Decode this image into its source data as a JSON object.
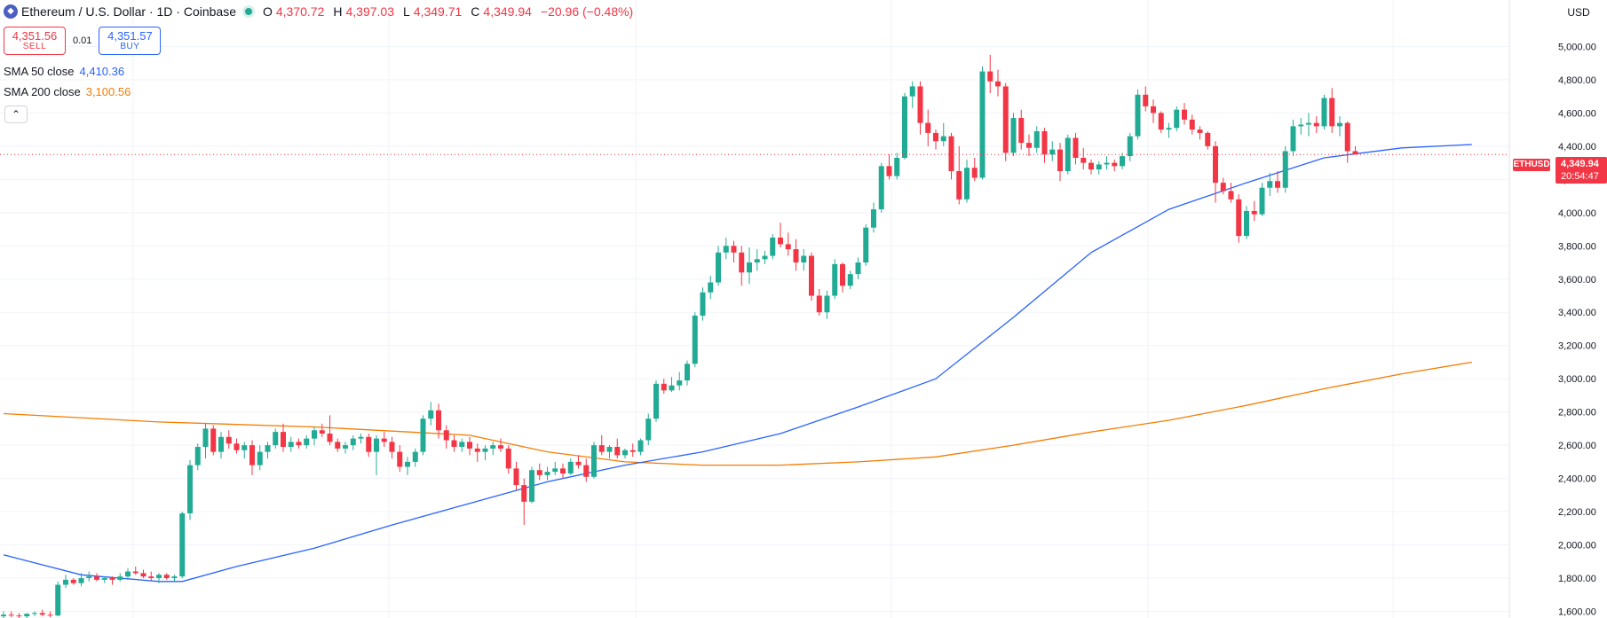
{
  "header": {
    "symbol_icon": "ethereum-icon",
    "title": "Ethereum / U.S. Dollar · 1D · Coinbase",
    "open_label": "O",
    "open_value": "4,370.72",
    "high_label": "H",
    "high_value": "4,397.03",
    "low_label": "L",
    "low_value": "4,349.71",
    "close_label": "C",
    "close_value": "4,349.94",
    "change": "−20.96 (−0.48%)"
  },
  "trade": {
    "sell_price": "4,351.56",
    "sell_label": "SELL",
    "spread": "0.01",
    "buy_price": "4,351.57",
    "buy_label": "BUY"
  },
  "indicators": {
    "sma50_label": "SMA 50 close",
    "sma50_value": "4,410.36",
    "sma200_label": "SMA 200 close",
    "sma200_value": "3,100.56",
    "collapse_icon": "chevron-up-icon"
  },
  "currency": "USD",
  "last_price_tag": {
    "symbol": "ETHUSD",
    "price": "4,349.94",
    "countdown": "20:54:47"
  },
  "colors": {
    "up": "#22ab94",
    "down": "#f23645",
    "sma50": "#2962ff",
    "sma200": "#f57c00",
    "grid": "#f0f3fa"
  },
  "chart_data": {
    "type": "candlestick",
    "ylim": [
      1560,
      5280
    ],
    "y_ticks": [
      1600,
      1800,
      2000,
      2200,
      2400,
      2600,
      2800,
      3000,
      3200,
      3400,
      3600,
      3800,
      4000,
      4200,
      4400,
      4600,
      4800,
      5000
    ],
    "y_tick_labels": [
      "1,600.00",
      "1,800.00",
      "2,000.00",
      "2,200.00",
      "2,400.00",
      "2,600.00",
      "2,800.00",
      "3,000.00",
      "3,200.00",
      "3,400.00",
      "3,600.00",
      "3,800.00",
      "4,000.00",
      "4,200.00",
      "4,400.00",
      "4,600.00",
      "4,800.00",
      "5,000.00"
    ],
    "grid": true,
    "last_close": 4349.94,
    "candles": [
      [
        1570,
        1600,
        1560,
        1580
      ],
      [
        1580,
        1600,
        1565,
        1575
      ],
      [
        1575,
        1590,
        1560,
        1570
      ],
      [
        1570,
        1590,
        1560,
        1585
      ],
      [
        1585,
        1600,
        1570,
        1590
      ],
      [
        1590,
        1610,
        1570,
        1580
      ],
      [
        1580,
        1600,
        1565,
        1575
      ],
      [
        1575,
        1780,
        1570,
        1760
      ],
      [
        1760,
        1820,
        1740,
        1790
      ],
      [
        1790,
        1800,
        1760,
        1770
      ],
      [
        1770,
        1830,
        1750,
        1800
      ],
      [
        1800,
        1840,
        1780,
        1810
      ],
      [
        1810,
        1830,
        1780,
        1790
      ],
      [
        1790,
        1810,
        1770,
        1800
      ],
      [
        1800,
        1810,
        1760,
        1790
      ],
      [
        1790,
        1830,
        1780,
        1810
      ],
      [
        1810,
        1860,
        1790,
        1840
      ],
      [
        1840,
        1870,
        1820,
        1830
      ],
      [
        1830,
        1850,
        1800,
        1810
      ],
      [
        1810,
        1840,
        1780,
        1800
      ],
      [
        1800,
        1830,
        1770,
        1820
      ],
      [
        1820,
        1830,
        1790,
        1800
      ],
      [
        1800,
        1820,
        1780,
        1810
      ],
      [
        1810,
        2200,
        1800,
        2190
      ],
      [
        2190,
        2510,
        2150,
        2480
      ],
      [
        2480,
        2610,
        2450,
        2590
      ],
      [
        2590,
        2730,
        2520,
        2700
      ],
      [
        2700,
        2720,
        2540,
        2560
      ],
      [
        2560,
        2680,
        2520,
        2650
      ],
      [
        2650,
        2690,
        2580,
        2610
      ],
      [
        2610,
        2640,
        2550,
        2570
      ],
      [
        2570,
        2620,
        2520,
        2600
      ],
      [
        2600,
        2630,
        2420,
        2480
      ],
      [
        2480,
        2600,
        2450,
        2560
      ],
      [
        2560,
        2620,
        2520,
        2600
      ],
      [
        2600,
        2700,
        2580,
        2680
      ],
      [
        2680,
        2730,
        2560,
        2590
      ],
      [
        2590,
        2650,
        2560,
        2620
      ],
      [
        2620,
        2640,
        2580,
        2600
      ],
      [
        2600,
        2660,
        2580,
        2640
      ],
      [
        2640,
        2710,
        2600,
        2690
      ],
      [
        2690,
        2730,
        2650,
        2670
      ],
      [
        2670,
        2780,
        2600,
        2620
      ],
      [
        2620,
        2640,
        2560,
        2580
      ],
      [
        2580,
        2620,
        2550,
        2600
      ],
      [
        2600,
        2660,
        2570,
        2640
      ],
      [
        2640,
        2670,
        2610,
        2650
      ],
      [
        2650,
        2670,
        2530,
        2560
      ],
      [
        2560,
        2660,
        2420,
        2640
      ],
      [
        2640,
        2680,
        2590,
        2620
      ],
      [
        2620,
        2650,
        2520,
        2560
      ],
      [
        2560,
        2600,
        2440,
        2470
      ],
      [
        2470,
        2530,
        2420,
        2500
      ],
      [
        2500,
        2580,
        2470,
        2560
      ],
      [
        2560,
        2780,
        2540,
        2760
      ],
      [
        2760,
        2860,
        2720,
        2810
      ],
      [
        2810,
        2850,
        2640,
        2690
      ],
      [
        2690,
        2720,
        2580,
        2630
      ],
      [
        2630,
        2660,
        2560,
        2590
      ],
      [
        2590,
        2640,
        2560,
        2620
      ],
      [
        2620,
        2650,
        2540,
        2580
      ],
      [
        2580,
        2610,
        2500,
        2560
      ],
      [
        2560,
        2600,
        2510,
        2580
      ],
      [
        2580,
        2620,
        2540,
        2600
      ],
      [
        2600,
        2640,
        2560,
        2580
      ],
      [
        2580,
        2600,
        2430,
        2460
      ],
      [
        2460,
        2500,
        2330,
        2360
      ],
      [
        2360,
        2400,
        2120,
        2260
      ],
      [
        2260,
        2470,
        2250,
        2450
      ],
      [
        2450,
        2490,
        2390,
        2420
      ],
      [
        2420,
        2470,
        2390,
        2440
      ],
      [
        2440,
        2500,
        2420,
        2460
      ],
      [
        2460,
        2490,
        2400,
        2430
      ],
      [
        2430,
        2520,
        2420,
        2500
      ],
      [
        2500,
        2540,
        2460,
        2480
      ],
      [
        2480,
        2520,
        2380,
        2410
      ],
      [
        2410,
        2620,
        2400,
        2600
      ],
      [
        2600,
        2660,
        2540,
        2560
      ],
      [
        2560,
        2600,
        2520,
        2590
      ],
      [
        2590,
        2640,
        2520,
        2540
      ],
      [
        2540,
        2580,
        2520,
        2570
      ],
      [
        2570,
        2610,
        2530,
        2560
      ],
      [
        2560,
        2640,
        2540,
        2630
      ],
      [
        2630,
        2790,
        2600,
        2760
      ],
      [
        2760,
        2990,
        2740,
        2970
      ],
      [
        2970,
        3000,
        2910,
        2930
      ],
      [
        2930,
        3010,
        2920,
        2960
      ],
      [
        2960,
        3040,
        2930,
        2990
      ],
      [
        2990,
        3110,
        2960,
        3090
      ],
      [
        3090,
        3400,
        3070,
        3380
      ],
      [
        3380,
        3550,
        3350,
        3520
      ],
      [
        3520,
        3620,
        3480,
        3580
      ],
      [
        3580,
        3800,
        3560,
        3760
      ],
      [
        3760,
        3850,
        3720,
        3800
      ],
      [
        3800,
        3830,
        3700,
        3760
      ],
      [
        3760,
        3800,
        3560,
        3640
      ],
      [
        3640,
        3790,
        3570,
        3700
      ],
      [
        3700,
        3780,
        3650,
        3720
      ],
      [
        3720,
        3770,
        3690,
        3740
      ],
      [
        3740,
        3870,
        3720,
        3850
      ],
      [
        3850,
        3940,
        3790,
        3810
      ],
      [
        3810,
        3880,
        3740,
        3780
      ],
      [
        3780,
        3840,
        3650,
        3700
      ],
      [
        3700,
        3780,
        3650,
        3740
      ],
      [
        3740,
        3760,
        3470,
        3500
      ],
      [
        3500,
        3540,
        3380,
        3400
      ],
      [
        3400,
        3530,
        3360,
        3500
      ],
      [
        3500,
        3720,
        3480,
        3690
      ],
      [
        3690,
        3700,
        3520,
        3560
      ],
      [
        3560,
        3650,
        3540,
        3630
      ],
      [
        3630,
        3730,
        3600,
        3700
      ],
      [
        3700,
        3930,
        3680,
        3910
      ],
      [
        3910,
        4060,
        3880,
        4020
      ],
      [
        4020,
        4300,
        4000,
        4280
      ],
      [
        4280,
        4350,
        4200,
        4220
      ],
      [
        4220,
        4360,
        4200,
        4330
      ],
      [
        4330,
        4720,
        4320,
        4700
      ],
      [
        4700,
        4790,
        4630,
        4760
      ],
      [
        4760,
        4790,
        4470,
        4540
      ],
      [
        4540,
        4620,
        4400,
        4480
      ],
      [
        4480,
        4500,
        4380,
        4430
      ],
      [
        4430,
        4540,
        4400,
        4460
      ],
      [
        4460,
        4480,
        4200,
        4250
      ],
      [
        4250,
        4400,
        4050,
        4080
      ],
      [
        4080,
        4320,
        4060,
        4270
      ],
      [
        4270,
        4330,
        4190,
        4210
      ],
      [
        4210,
        4880,
        4200,
        4850
      ],
      [
        4850,
        4950,
        4720,
        4790
      ],
      [
        4790,
        4860,
        4700,
        4760
      ],
      [
        4760,
        4780,
        4310,
        4360
      ],
      [
        4360,
        4600,
        4340,
        4570
      ],
      [
        4570,
        4620,
        4380,
        4420
      ],
      [
        4420,
        4470,
        4340,
        4390
      ],
      [
        4390,
        4520,
        4360,
        4490
      ],
      [
        4490,
        4510,
        4300,
        4350
      ],
      [
        4350,
        4430,
        4310,
        4380
      ],
      [
        4380,
        4420,
        4190,
        4250
      ],
      [
        4250,
        4470,
        4230,
        4450
      ],
      [
        4450,
        4480,
        4290,
        4330
      ],
      [
        4330,
        4390,
        4260,
        4300
      ],
      [
        4300,
        4320,
        4230,
        4260
      ],
      [
        4260,
        4310,
        4230,
        4290
      ],
      [
        4290,
        4340,
        4260,
        4300
      ],
      [
        4300,
        4320,
        4250,
        4280
      ],
      [
        4280,
        4360,
        4260,
        4340
      ],
      [
        4340,
        4480,
        4310,
        4460
      ],
      [
        4460,
        4740,
        4440,
        4710
      ],
      [
        4710,
        4760,
        4610,
        4640
      ],
      [
        4640,
        4680,
        4540,
        4600
      ],
      [
        4600,
        4610,
        4480,
        4500
      ],
      [
        4500,
        4540,
        4450,
        4510
      ],
      [
        4510,
        4640,
        4490,
        4620
      ],
      [
        4620,
        4660,
        4530,
        4560
      ],
      [
        4560,
        4590,
        4470,
        4500
      ],
      [
        4500,
        4520,
        4440,
        4480
      ],
      [
        4480,
        4490,
        4380,
        4400
      ],
      [
        4400,
        4430,
        4060,
        4180
      ],
      [
        4180,
        4210,
        4110,
        4130
      ],
      [
        4130,
        4180,
        4060,
        4080
      ],
      [
        4080,
        4110,
        3820,
        3860
      ],
      [
        3860,
        4040,
        3840,
        4010
      ],
      [
        4010,
        4070,
        3950,
        3990
      ],
      [
        3990,
        4180,
        3980,
        4150
      ],
      [
        4150,
        4240,
        4100,
        4190
      ],
      [
        4190,
        4250,
        4120,
        4150
      ],
      [
        4150,
        4400,
        4120,
        4370
      ],
      [
        4370,
        4560,
        4340,
        4520
      ],
      [
        4520,
        4570,
        4470,
        4530
      ],
      [
        4530,
        4600,
        4460,
        4540
      ],
      [
        4540,
        4580,
        4480,
        4520
      ],
      [
        4520,
        4710,
        4500,
        4690
      ],
      [
        4690,
        4750,
        4480,
        4520
      ],
      [
        4520,
        4580,
        4460,
        4540
      ],
      [
        4540,
        4550,
        4300,
        4370
      ],
      [
        4370,
        4400,
        4350,
        4350
      ]
    ],
    "series": [
      {
        "name": "SMA 50 close",
        "values_by_index": [
          [
            0,
            1940
          ],
          [
            10,
            1820
          ],
          [
            20,
            1780
          ],
          [
            23,
            1780
          ],
          [
            30,
            1870
          ],
          [
            40,
            1980
          ],
          [
            50,
            2120
          ],
          [
            60,
            2250
          ],
          [
            70,
            2380
          ],
          [
            80,
            2480
          ],
          [
            90,
            2560
          ],
          [
            100,
            2670
          ],
          [
            110,
            2830
          ],
          [
            120,
            3000
          ],
          [
            130,
            3370
          ],
          [
            140,
            3760
          ],
          [
            150,
            4020
          ],
          [
            160,
            4180
          ],
          [
            170,
            4330
          ],
          [
            180,
            4390
          ],
          [
            189,
            4410
          ]
        ]
      },
      {
        "name": "SMA 200 close",
        "values_by_index": [
          [
            0,
            2790
          ],
          [
            20,
            2740
          ],
          [
            40,
            2710
          ],
          [
            60,
            2660
          ],
          [
            70,
            2560
          ],
          [
            80,
            2500
          ],
          [
            90,
            2480
          ],
          [
            100,
            2480
          ],
          [
            110,
            2500
          ],
          [
            120,
            2530
          ],
          [
            130,
            2600
          ],
          [
            140,
            2680
          ],
          [
            150,
            2750
          ],
          [
            160,
            2840
          ],
          [
            170,
            2940
          ],
          [
            180,
            3030
          ],
          [
            189,
            3100
          ]
        ]
      }
    ]
  }
}
